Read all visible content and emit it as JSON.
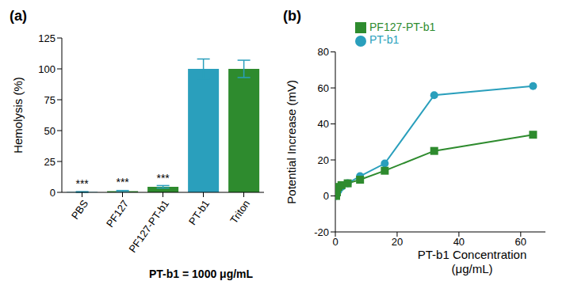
{
  "chart_data": [
    {
      "type": "bar",
      "title": "(a)",
      "y_label": "Hemolysis (%)",
      "categories": [
        "PBS",
        "PF127",
        "PF127-PT-b1",
        "PT-b1",
        "Triton"
      ],
      "values": [
        0.3,
        1,
        4.5,
        100,
        100
      ],
      "errors": [
        0.3,
        0.5,
        1,
        8,
        7
      ],
      "colors": [
        "#2a9fbc",
        "#2e8b2e",
        "#2e8b2e",
        "#2a9fbc",
        "#2e8b2e"
      ],
      "ylim": [
        0,
        125
      ],
      "yticks": [
        0,
        25,
        50,
        75,
        100,
        125
      ],
      "grid": false,
      "annotations": [
        {
          "category": "PBS",
          "text": "***"
        },
        {
          "category": "PF127",
          "text": "***"
        },
        {
          "category": "PF127-PT-b1",
          "text": "***"
        }
      ],
      "note": "PT-b1 = 1000 μg/mL"
    },
    {
      "type": "line",
      "title": "(b)",
      "x_label": "PT-b1 Concentration (μg/mL)",
      "y_label": "Potential Increase (mV)",
      "x": [
        0.25,
        0.5,
        1,
        2,
        4,
        8,
        16,
        32,
        64
      ],
      "series": [
        {
          "name": "PT-b1",
          "color": "#2a9fbc",
          "marker": "circle",
          "values": [
            0,
            1,
            3,
            5,
            7,
            11,
            18,
            56,
            61
          ]
        },
        {
          "name": "PF127-PT-b1",
          "color": "#2e8b2e",
          "marker": "square",
          "values": [
            0,
            2,
            5,
            6,
            7,
            9,
            14,
            25,
            34
          ]
        }
      ],
      "xlim": [
        0,
        68
      ],
      "xticks": [
        0,
        20,
        40,
        60
      ],
      "ylim": [
        -20,
        80
      ],
      "yticks": [
        -20,
        0,
        20,
        40,
        60,
        80
      ],
      "grid": false,
      "legend": "upper left"
    }
  ]
}
